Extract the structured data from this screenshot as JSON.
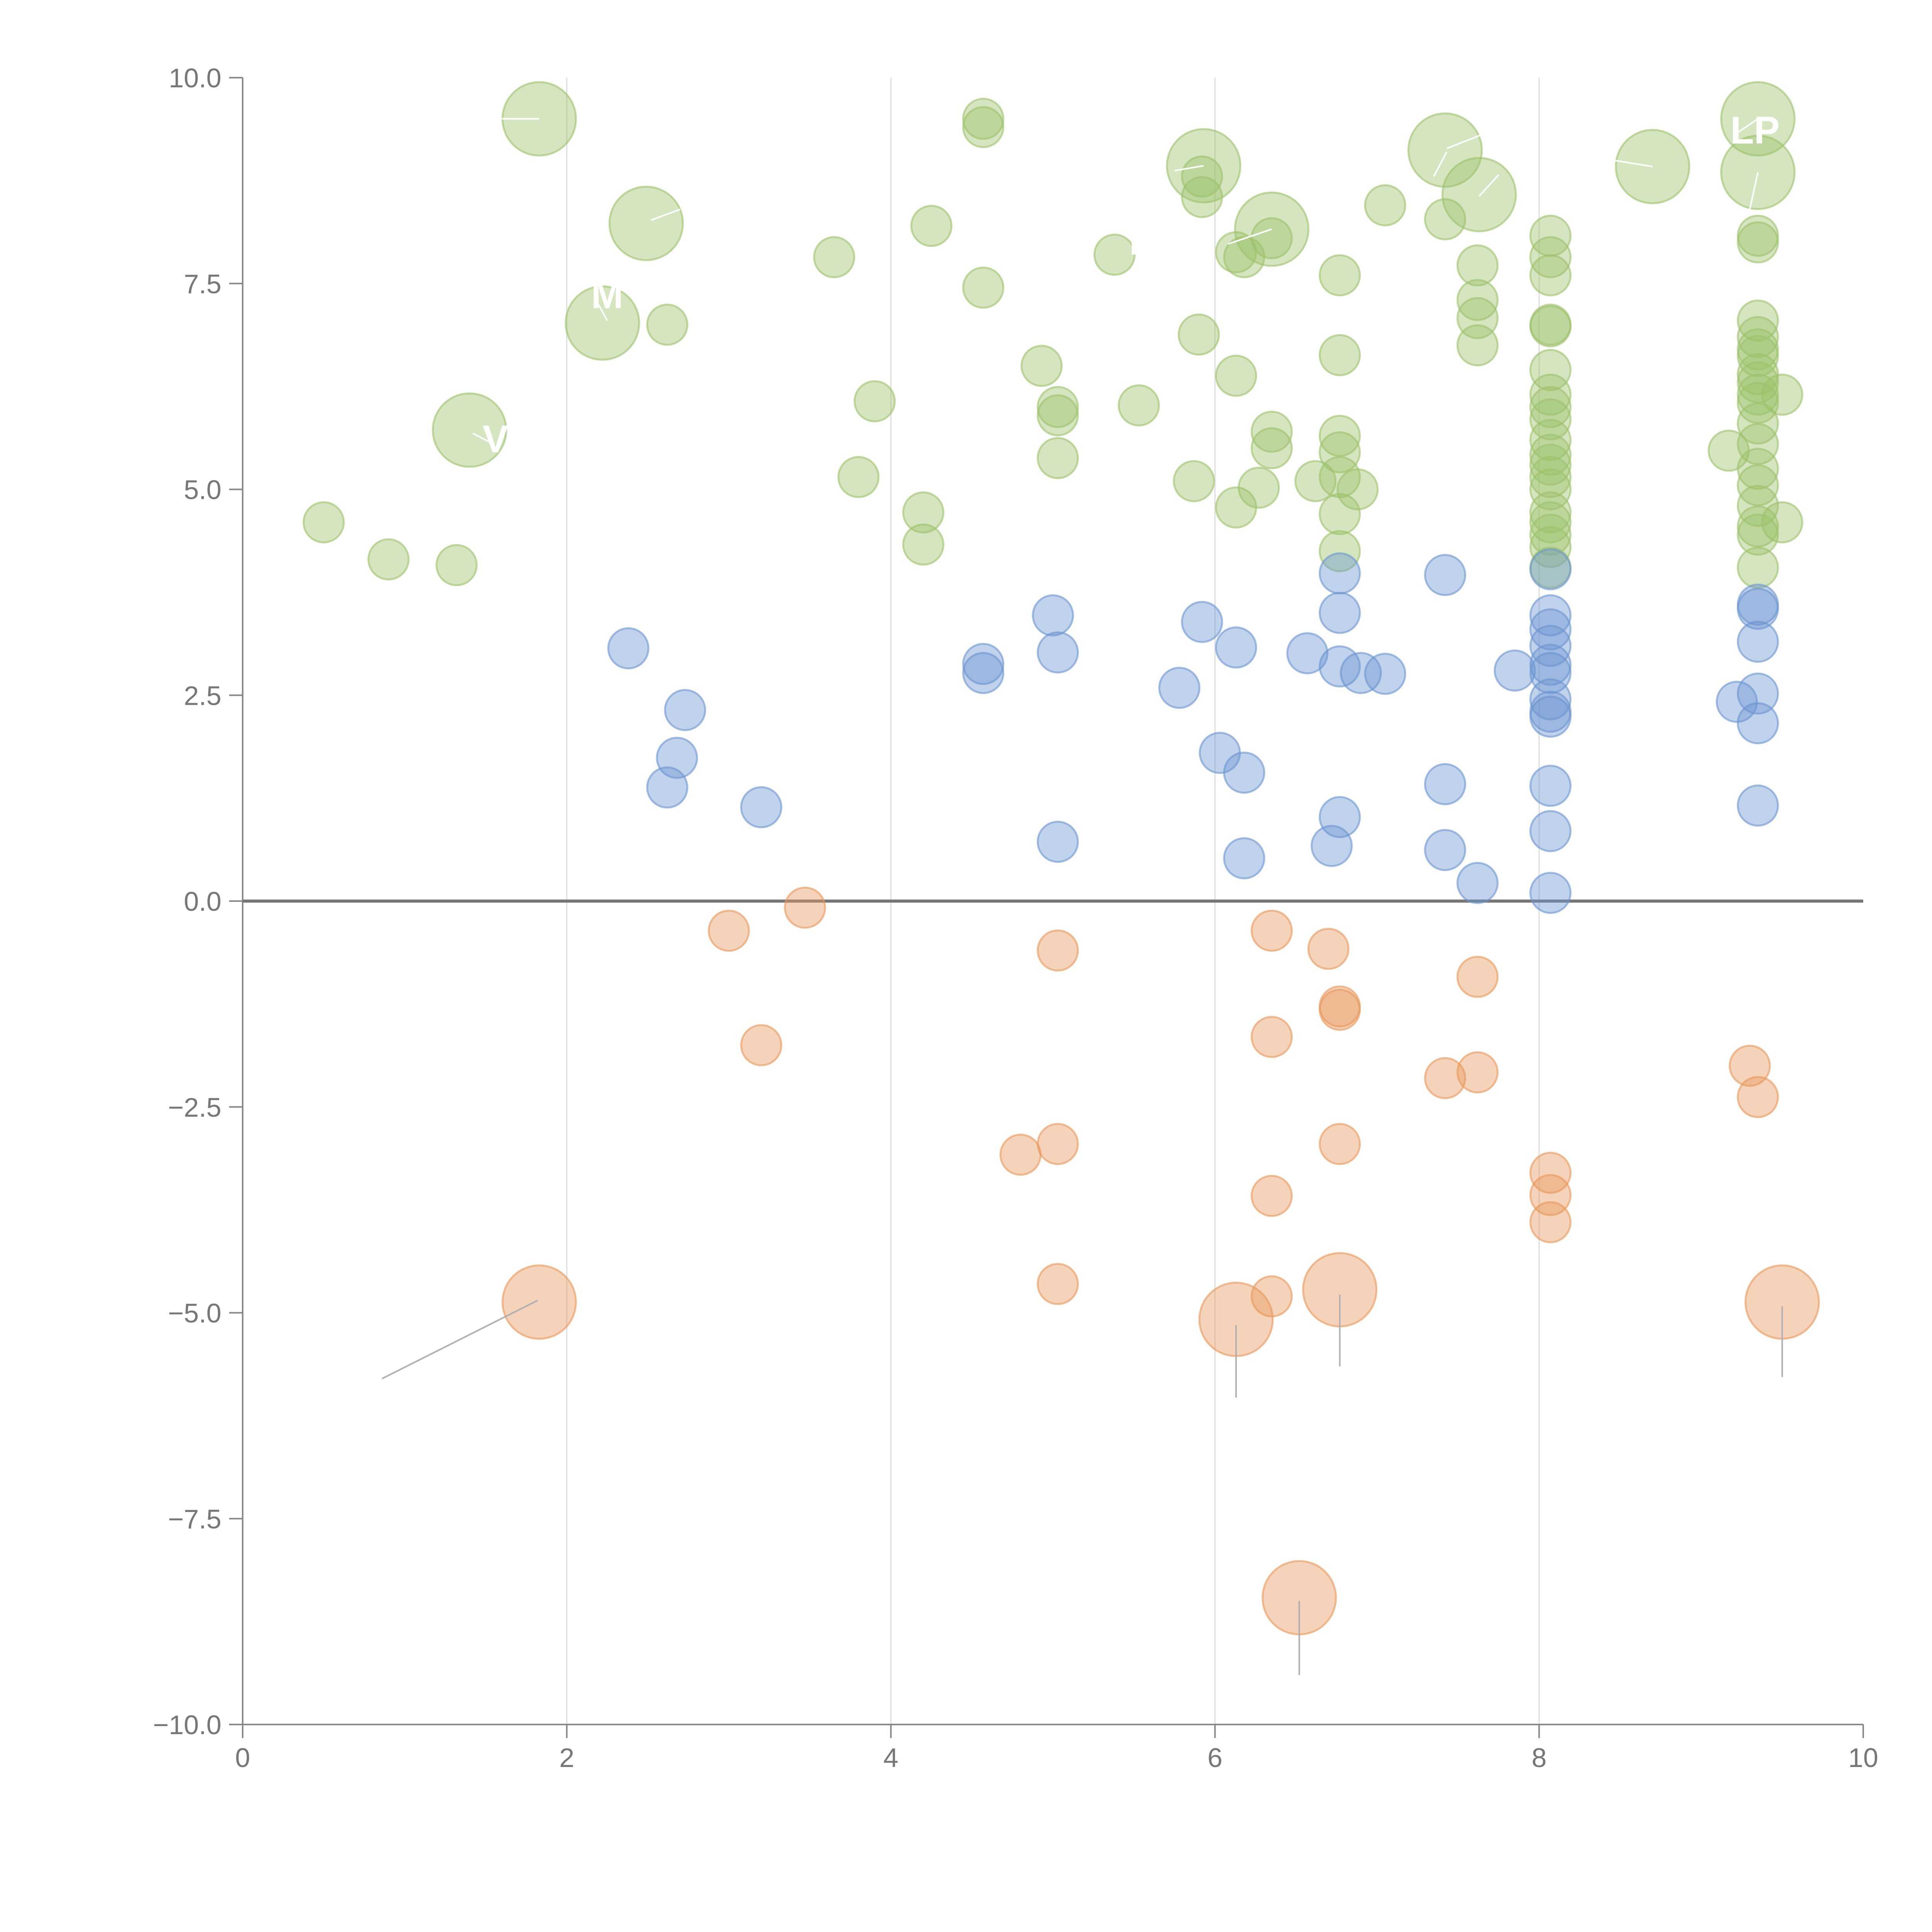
{
  "chart_data": {
    "type": "scatter",
    "title": "",
    "xlabel": "",
    "ylabel": "",
    "xlim": [
      0,
      10
    ],
    "ylim": [
      -10,
      10
    ],
    "x_ticks": [
      0,
      2,
      4,
      6,
      8,
      10
    ],
    "x_tick_labels": [
      "0",
      "2",
      "4",
      "6",
      "8",
      "10"
    ],
    "y_ticks": [
      10,
      7.5,
      5,
      2.5,
      0,
      -2.5,
      -5,
      -7.5,
      -10
    ],
    "y_tick_labels": [
      "10.0",
      "7.5",
      "5.0",
      "2.5",
      "0.0",
      "−2.5",
      "−5.0",
      "−7.5",
      "−10.0"
    ],
    "grid": "vertical lines at x ticks",
    "colors": {
      "green": "#9cc16a",
      "blue": "#6b94d1",
      "orange": "#e8975a",
      "leader_dark": "#b0b0b0",
      "leader_light": "#ffffff"
    },
    "series": [
      {
        "name": "green",
        "color": "#9cc16a",
        "points": [
          [
            0.5,
            4.6
          ],
          [
            0.9,
            4.15
          ],
          [
            1.32,
            4.08
          ],
          [
            2.62,
            7.0
          ],
          [
            3.65,
            7.82
          ],
          [
            3.8,
            5.15
          ],
          [
            3.9,
            6.07
          ],
          [
            4.2,
            4.72
          ],
          [
            4.2,
            4.33
          ],
          [
            4.25,
            8.2
          ],
          [
            4.57,
            9.5
          ],
          [
            4.57,
            9.4
          ],
          [
            4.57,
            7.45
          ],
          [
            4.93,
            6.5
          ],
          [
            5.03,
            6.0
          ],
          [
            5.03,
            5.9
          ],
          [
            5.03,
            5.38
          ],
          [
            5.38,
            7.85
          ],
          [
            5.53,
            6.02
          ],
          [
            5.87,
            5.1
          ],
          [
            5.9,
            6.88
          ],
          [
            5.92,
            8.8
          ],
          [
            5.92,
            8.55
          ],
          [
            6.13,
            6.38
          ],
          [
            6.13,
            4.78
          ],
          [
            6.13,
            7.88
          ],
          [
            6.18,
            7.82
          ],
          [
            6.27,
            5.02
          ],
          [
            6.35,
            5.7
          ],
          [
            6.35,
            5.5
          ],
          [
            6.35,
            8.05
          ],
          [
            6.62,
            5.1
          ],
          [
            6.77,
            7.6
          ],
          [
            6.77,
            6.63
          ],
          [
            6.77,
            5.65
          ],
          [
            6.77,
            5.45
          ],
          [
            6.77,
            5.15
          ],
          [
            6.77,
            4.7
          ],
          [
            6.77,
            4.25
          ],
          [
            6.88,
            5.0
          ],
          [
            7.05,
            8.45
          ],
          [
            7.42,
            8.28
          ],
          [
            7.62,
            7.72
          ],
          [
            7.62,
            7.3
          ],
          [
            7.62,
            7.08
          ],
          [
            7.62,
            6.75
          ],
          [
            8.07,
            8.08
          ],
          [
            8.07,
            7.82
          ],
          [
            8.07,
            7.6
          ],
          [
            8.07,
            7.0
          ],
          [
            8.07,
            6.98
          ],
          [
            8.07,
            6.45
          ],
          [
            8.07,
            6.15
          ],
          [
            8.07,
            6.0
          ],
          [
            8.07,
            5.85
          ],
          [
            8.07,
            5.6
          ],
          [
            8.07,
            5.42
          ],
          [
            8.07,
            5.3
          ],
          [
            8.07,
            5.15
          ],
          [
            8.07,
            5.0
          ],
          [
            8.07,
            4.72
          ],
          [
            8.07,
            4.6
          ],
          [
            8.07,
            4.45
          ],
          [
            8.07,
            4.3
          ],
          [
            8.07,
            4.05
          ],
          [
            9.17,
            5.47
          ],
          [
            9.35,
            8.08
          ],
          [
            9.35,
            8.0
          ],
          [
            9.35,
            7.05
          ],
          [
            9.35,
            6.85
          ],
          [
            9.35,
            6.7
          ],
          [
            9.35,
            6.62
          ],
          [
            9.35,
            6.4
          ],
          [
            9.35,
            6.3
          ],
          [
            9.35,
            6.15
          ],
          [
            9.35,
            6.05
          ],
          [
            9.35,
            5.8
          ],
          [
            9.35,
            5.55
          ],
          [
            9.35,
            5.25
          ],
          [
            9.35,
            5.05
          ],
          [
            9.35,
            4.8
          ],
          [
            9.35,
            4.55
          ],
          [
            9.35,
            4.45
          ],
          [
            9.35,
            4.05
          ],
          [
            9.5,
            6.15
          ],
          [
            9.5,
            4.6
          ]
        ]
      },
      {
        "name": "blue",
        "color": "#6b94d1",
        "points": [
          [
            2.38,
            3.07
          ],
          [
            2.62,
            1.38
          ],
          [
            2.68,
            1.74
          ],
          [
            2.73,
            2.32
          ],
          [
            3.2,
            1.14
          ],
          [
            4.57,
            2.88
          ],
          [
            4.57,
            2.77
          ],
          [
            5.0,
            3.47
          ],
          [
            5.03,
            3.02
          ],
          [
            5.03,
            0.72
          ],
          [
            5.78,
            2.59
          ],
          [
            5.92,
            3.39
          ],
          [
            6.03,
            1.8
          ],
          [
            6.13,
            3.08
          ],
          [
            6.18,
            1.56
          ],
          [
            6.18,
            0.52
          ],
          [
            6.57,
            3.01
          ],
          [
            6.72,
            0.67
          ],
          [
            6.77,
            3.98
          ],
          [
            6.77,
            3.5
          ],
          [
            6.77,
            2.85
          ],
          [
            6.77,
            1.02
          ],
          [
            6.9,
            2.77
          ],
          [
            7.05,
            2.76
          ],
          [
            7.42,
            3.96
          ],
          [
            7.42,
            1.42
          ],
          [
            7.42,
            0.62
          ],
          [
            7.62,
            0.22
          ],
          [
            7.85,
            2.8
          ],
          [
            8.07,
            4.03
          ],
          [
            8.07,
            3.47
          ],
          [
            8.07,
            3.3
          ],
          [
            8.07,
            3.1
          ],
          [
            8.07,
            2.87
          ],
          [
            8.07,
            2.77
          ],
          [
            8.07,
            2.45
          ],
          [
            8.07,
            2.3
          ],
          [
            8.07,
            2.24
          ],
          [
            8.07,
            1.4
          ],
          [
            8.07,
            0.85
          ],
          [
            8.07,
            0.1
          ],
          [
            9.22,
            2.42
          ],
          [
            9.35,
            3.6
          ],
          [
            9.35,
            3.55
          ],
          [
            9.35,
            3.15
          ],
          [
            9.35,
            2.52
          ],
          [
            9.35,
            2.16
          ],
          [
            9.35,
            1.16
          ]
        ]
      },
      {
        "name": "orange",
        "color": "#e8975a",
        "points": [
          [
            3.0,
            -0.36
          ],
          [
            3.2,
            -1.75
          ],
          [
            3.47,
            -0.08
          ],
          [
            4.8,
            -3.08
          ],
          [
            5.03,
            -0.6
          ],
          [
            5.03,
            -2.95
          ],
          [
            5.03,
            -4.65
          ],
          [
            6.35,
            -0.36
          ],
          [
            6.35,
            -1.65
          ],
          [
            6.35,
            -3.58
          ],
          [
            6.35,
            -4.8
          ],
          [
            6.7,
            -0.58
          ],
          [
            6.77,
            -1.28
          ],
          [
            6.77,
            -1.32
          ],
          [
            6.77,
            -2.95
          ],
          [
            7.42,
            -2.15
          ],
          [
            7.62,
            -0.92
          ],
          [
            7.62,
            -2.08
          ],
          [
            8.07,
            -3.3
          ],
          [
            8.07,
            -3.57
          ],
          [
            8.07,
            -3.9
          ],
          [
            9.3,
            -2.0
          ],
          [
            9.35,
            -2.38
          ]
        ]
      }
    ],
    "large_markers": [
      {
        "series": "green",
        "x": 1.4,
        "y": 5.72,
        "label": ""
      },
      {
        "series": "green",
        "x": 1.83,
        "y": 9.5,
        "label": ""
      },
      {
        "series": "green",
        "x": 2.22,
        "y": 7.02,
        "label": ""
      },
      {
        "series": "green",
        "x": 2.49,
        "y": 8.23,
        "label": ""
      },
      {
        "series": "green",
        "x": 5.93,
        "y": 8.93,
        "label": ""
      },
      {
        "series": "green",
        "x": 6.35,
        "y": 8.16,
        "label": ""
      },
      {
        "series": "green",
        "x": 7.42,
        "y": 9.12,
        "label": ""
      },
      {
        "series": "green",
        "x": 7.63,
        "y": 8.58,
        "label": ""
      },
      {
        "series": "green",
        "x": 8.7,
        "y": 8.92,
        "label": ""
      },
      {
        "series": "green",
        "x": 9.35,
        "y": 9.5,
        "label": ""
      },
      {
        "series": "green",
        "x": 9.35,
        "y": 8.85,
        "label": ""
      },
      {
        "series": "orange",
        "x": 1.83,
        "y": -4.87,
        "label": ""
      },
      {
        "series": "orange",
        "x": 6.13,
        "y": -5.08,
        "label": ""
      },
      {
        "series": "orange",
        "x": 6.52,
        "y": -8.46,
        "label": ""
      },
      {
        "series": "orange",
        "x": 6.77,
        "y": -4.72,
        "label": ""
      },
      {
        "series": "orange",
        "x": 9.5,
        "y": -4.87,
        "label": ""
      }
    ],
    "leader_lines": [
      {
        "from": [
          1.82,
          -4.85
        ],
        "to": [
          0.86,
          -5.8
        ],
        "style": "dark"
      },
      {
        "from": [
          6.13,
          -5.15
        ],
        "to": [
          6.13,
          -6.03
        ],
        "style": "dark"
      },
      {
        "from": [
          6.52,
          -8.5
        ],
        "to": [
          6.52,
          -9.4
        ],
        "style": "dark"
      },
      {
        "from": [
          6.77,
          -4.78
        ],
        "to": [
          6.77,
          -5.65
        ],
        "style": "dark"
      },
      {
        "from": [
          9.5,
          -4.92
        ],
        "to": [
          9.5,
          -5.78
        ],
        "style": "dark"
      },
      {
        "from": [
          1.83,
          9.5
        ],
        "to": [
          1.6,
          9.5
        ],
        "style": "light"
      },
      {
        "from": [
          1.42,
          5.68
        ],
        "to": [
          1.55,
          5.55
        ],
        "style": "light"
      },
      {
        "from": [
          2.52,
          8.27
        ],
        "to": [
          2.7,
          8.4
        ],
        "style": "light"
      },
      {
        "from": [
          2.25,
          7.05
        ],
        "to": [
          2.18,
          7.3
        ],
        "style": "light"
      },
      {
        "from": [
          6.35,
          8.16
        ],
        "to": [
          6.08,
          7.98
        ],
        "style": "light"
      },
      {
        "from": [
          5.93,
          8.93
        ],
        "to": [
          5.75,
          8.87
        ],
        "style": "light"
      },
      {
        "from": [
          7.43,
          9.14
        ],
        "to": [
          7.7,
          9.35
        ],
        "style": "light"
      },
      {
        "from": [
          7.43,
          9.1
        ],
        "to": [
          7.35,
          8.8
        ],
        "style": "light"
      },
      {
        "from": [
          7.63,
          8.56
        ],
        "to": [
          7.75,
          8.82
        ],
        "style": "light"
      },
      {
        "from": [
          8.7,
          8.92
        ],
        "to": [
          8.45,
          9.0
        ],
        "style": "light"
      },
      {
        "from": [
          9.35,
          8.85
        ],
        "to": [
          9.3,
          8.4
        ],
        "style": "light"
      },
      {
        "from": [
          9.35,
          9.5
        ],
        "to": [
          9.2,
          9.3
        ],
        "style": "light"
      }
    ],
    "annotations": [
      {
        "text": "M",
        "x": 2.15,
        "y": 7.2
      },
      {
        "text": "E",
        "x": 5.47,
        "y": 7.85
      },
      {
        "text": "LP",
        "x": 9.18,
        "y": 9.2
      },
      {
        "text": "V",
        "x": 1.48,
        "y": 5.45
      }
    ]
  }
}
